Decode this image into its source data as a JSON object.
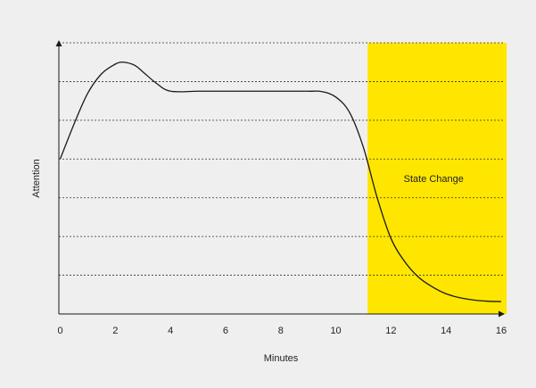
{
  "chart_data": {
    "type": "line",
    "title": "",
    "xlabel": "Minutes",
    "ylabel": "Attention",
    "xlim": [
      0,
      16
    ],
    "ylim": [
      0,
      7
    ],
    "xticks": [
      0,
      2,
      4,
      6,
      8,
      10,
      12,
      14,
      16
    ],
    "xtick_labels": [
      "0",
      "2",
      "4",
      "6",
      "8",
      "10",
      "12",
      "14",
      "16"
    ],
    "y_gridlines": [
      1,
      2,
      3,
      4,
      5,
      6,
      7
    ],
    "grid": "horizontal dotted",
    "series": [
      {
        "x": [
          0,
          0.5,
          1,
          1.5,
          2,
          2.3,
          2.7,
          3,
          3.5,
          4,
          5,
          6,
          7,
          8,
          9,
          9.5,
          10,
          10.5,
          11,
          11.5,
          12,
          12.5,
          13,
          13.5,
          14,
          14.5,
          15,
          15.5,
          16
        ],
        "y": [
          4,
          4.9,
          5.7,
          6.2,
          6.45,
          6.5,
          6.42,
          6.25,
          5.95,
          5.75,
          5.75,
          5.75,
          5.75,
          5.75,
          5.75,
          5.74,
          5.6,
          5.2,
          4.3,
          3.0,
          1.95,
          1.35,
          0.95,
          0.7,
          0.52,
          0.42,
          0.36,
          0.33,
          0.32
        ],
        "color": "#1a1a1a"
      }
    ],
    "highlight_region": {
      "x_range": [
        11.15,
        16.2
      ],
      "color": "#ffe600",
      "label": "State Change",
      "label_x": 13.55,
      "label_y": 3.5
    },
    "colors": {
      "background": "#efefef",
      "axis": "#1a1a1a",
      "grid": "#333333",
      "line": "#1a1a1a",
      "highlight": "#ffe600"
    }
  }
}
